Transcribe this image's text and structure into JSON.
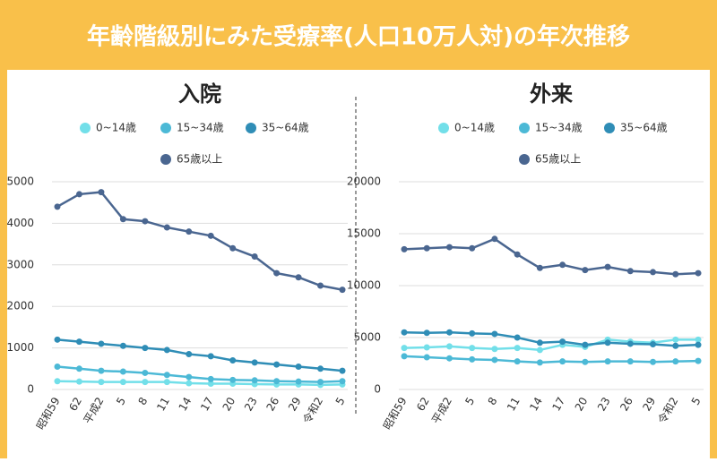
{
  "title": "年齢階級別にみた受療率(人口10万人対)の年次推移",
  "chart_data": [
    {
      "type": "line",
      "title": "入院",
      "categories": [
        "昭和59",
        "62",
        "平成2",
        "5",
        "8",
        "11",
        "14",
        "17",
        "20",
        "23",
        "26",
        "29",
        "令和2",
        "5"
      ],
      "series": [
        {
          "name": "0~14歳",
          "color": "#72dfe9",
          "values": [
            200,
            190,
            180,
            180,
            180,
            180,
            150,
            140,
            140,
            130,
            120,
            120,
            110,
            120
          ]
        },
        {
          "name": "15~34歳",
          "color": "#4cb9d6",
          "values": [
            550,
            500,
            450,
            430,
            400,
            350,
            300,
            250,
            230,
            220,
            200,
            190,
            180,
            200
          ]
        },
        {
          "name": "35~64歳",
          "color": "#2f8db6",
          "values": [
            1200,
            1150,
            1100,
            1050,
            1000,
            950,
            850,
            800,
            700,
            650,
            600,
            550,
            500,
            450
          ]
        },
        {
          "name": "65歳以上",
          "color": "#4a6690",
          "values": [
            4400,
            4700,
            4750,
            4100,
            4050,
            3900,
            3800,
            3700,
            3400,
            3200,
            2800,
            2700,
            2500,
            2400
          ]
        }
      ],
      "ylim": [
        0,
        5000
      ],
      "yticks": [
        0,
        1000,
        2000,
        3000,
        4000,
        5000
      ],
      "grid": true
    },
    {
      "type": "line",
      "title": "外来",
      "categories": [
        "昭和59",
        "62",
        "平成2",
        "5",
        "8",
        "11",
        "14",
        "17",
        "20",
        "23",
        "26",
        "29",
        "令和2",
        "5"
      ],
      "series": [
        {
          "name": "0~14歳",
          "color": "#72dfe9",
          "values": [
            4000,
            4050,
            4150,
            4000,
            3900,
            4000,
            3800,
            4300,
            4100,
            4800,
            4600,
            4500,
            4800,
            4800
          ]
        },
        {
          "name": "15~34歳",
          "color": "#4cb9d6",
          "values": [
            3200,
            3100,
            3000,
            2900,
            2850,
            2700,
            2600,
            2700,
            2650,
            2700,
            2700,
            2650,
            2700,
            2750
          ]
        },
        {
          "name": "35~64歳",
          "color": "#2f8db6",
          "values": [
            5500,
            5450,
            5500,
            5400,
            5350,
            5000,
            4500,
            4600,
            4300,
            4500,
            4400,
            4350,
            4200,
            4300
          ]
        },
        {
          "name": "65歳以上",
          "color": "#4a6690",
          "values": [
            13500,
            13600,
            13700,
            13600,
            14500,
            13000,
            11700,
            12000,
            11500,
            11800,
            11400,
            11300,
            11100,
            11200
          ]
        }
      ],
      "ylim": [
        0,
        20000
      ],
      "yticks": [
        0,
        5000,
        10000,
        15000,
        20000
      ],
      "grid": true
    }
  ]
}
